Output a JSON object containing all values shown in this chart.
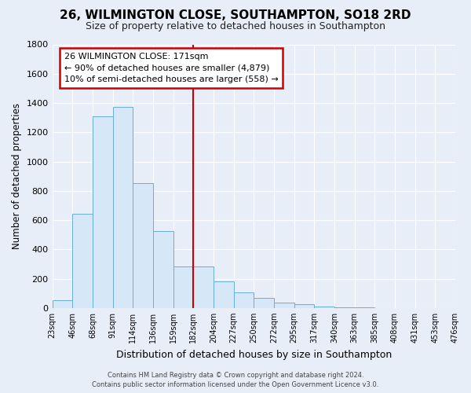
{
  "title": "26, WILMINGTON CLOSE, SOUTHAMPTON, SO18 2RD",
  "subtitle": "Size of property relative to detached houses in Southampton",
  "xlabel": "Distribution of detached houses by size in Southampton",
  "ylabel": "Number of detached properties",
  "bin_labels": [
    "23sqm",
    "46sqm",
    "68sqm",
    "91sqm",
    "114sqm",
    "136sqm",
    "159sqm",
    "182sqm",
    "204sqm",
    "227sqm",
    "250sqm",
    "272sqm",
    "295sqm",
    "317sqm",
    "340sqm",
    "363sqm",
    "385sqm",
    "408sqm",
    "431sqm",
    "453sqm",
    "476sqm"
  ],
  "bar_values": [
    55,
    645,
    1310,
    1375,
    850,
    525,
    285,
    285,
    180,
    105,
    70,
    35,
    25,
    12,
    5,
    2,
    1,
    0,
    0,
    0
  ],
  "bar_color": "#d6e8f7",
  "bar_edge_color": "#6aaed6",
  "vline_x": 7,
  "vline_color": "#cc0000",
  "ylim": [
    0,
    1800
  ],
  "yticks": [
    0,
    200,
    400,
    600,
    800,
    1000,
    1200,
    1400,
    1600,
    1800
  ],
  "annotation_title": "26 WILMINGTON CLOSE: 171sqm",
  "annotation_line1": "← 90% of detached houses are smaller (4,879)",
  "annotation_line2": "10% of semi-detached houses are larger (558) →",
  "annotation_box_color": "#ffffff",
  "annotation_box_edge": "#cc0000",
  "footer_line1": "Contains HM Land Registry data © Crown copyright and database right 2024.",
  "footer_line2": "Contains public sector information licensed under the Open Government Licence v3.0.",
  "background_color": "#e8eef7",
  "grid_color": "#ffffff",
  "plot_bg": "#e8eef7"
}
